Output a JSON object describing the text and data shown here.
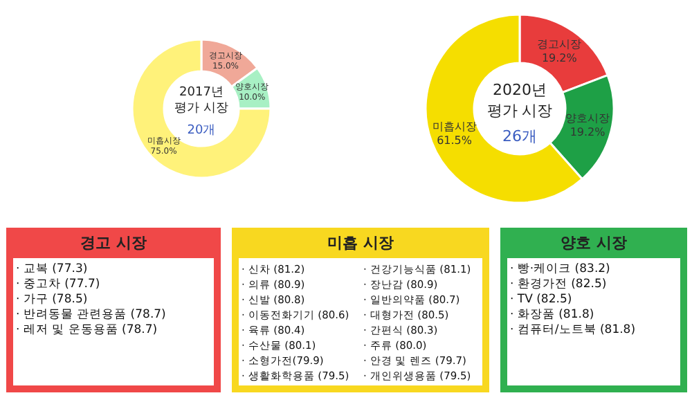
{
  "chart_data": [
    {
      "type": "donut",
      "title": "2017년\n평가 시장",
      "subtitle": "20개",
      "categories": [
        "경고시장",
        "양호시장",
        "미흡시장"
      ],
      "values": [
        15.0,
        10.0,
        75.0
      ],
      "colors": [
        "#f0a898",
        "#a8f0c4",
        "#fff27a"
      ],
      "value_labels": [
        "15.0%",
        "10.0%",
        "75.0%"
      ]
    },
    {
      "type": "donut",
      "title": "2020년\n평가 시장",
      "subtitle": "26개",
      "categories": [
        "경고시장",
        "양호시장",
        "미흡시장"
      ],
      "values": [
        19.2,
        19.2,
        61.5
      ],
      "colors": [
        "#e83c3c",
        "#1ea046",
        "#f5de00"
      ],
      "value_labels": [
        "19.2%",
        "19.2%",
        "61.5%"
      ]
    },
    {
      "type": "other",
      "title": "경고 시장",
      "color": "#f04848",
      "annotations": [
        "· 교복 (77.3)",
        "· 중고차 (77.7)",
        "· 가구 (78.5)",
        "· 반려동물 관련용품 (78.7)",
        "· 레저 및 운동용품 (78.7)"
      ]
    },
    {
      "type": "other",
      "title": "미흡 시장",
      "color": "#f8d820",
      "annotations": [
        "· 신차 (81.2)",
        "· 의류 (80.9)",
        "· 신발 (80.8)",
        "· 이동전화기기 (80.6)",
        "· 육류 (80.4)",
        "· 수산물 (80.1)",
        "· 소형가전(79.9)",
        "· 생활화학용품 (79.5)",
        "· 건강기능식품 (81.1)",
        "· 장난감 (80.9)",
        "· 일반의약품 (80.7)",
        "· 대형가전 (80.5)",
        "· 간편식 (80.3)",
        "· 주류 (80.0)",
        "· 안경 및 렌즈 (79.7)",
        "· 개인위생용품 (79.5)"
      ]
    },
    {
      "type": "other",
      "title": "양호 시장",
      "color": "#30b050",
      "annotations": [
        "· 빵·케이크 (83.2)",
        "· 환경가전 (82.5)",
        "· TV (82.5)",
        "· 화장품 (81.8)",
        "· 컴퓨터/노트북 (81.8)"
      ]
    }
  ]
}
